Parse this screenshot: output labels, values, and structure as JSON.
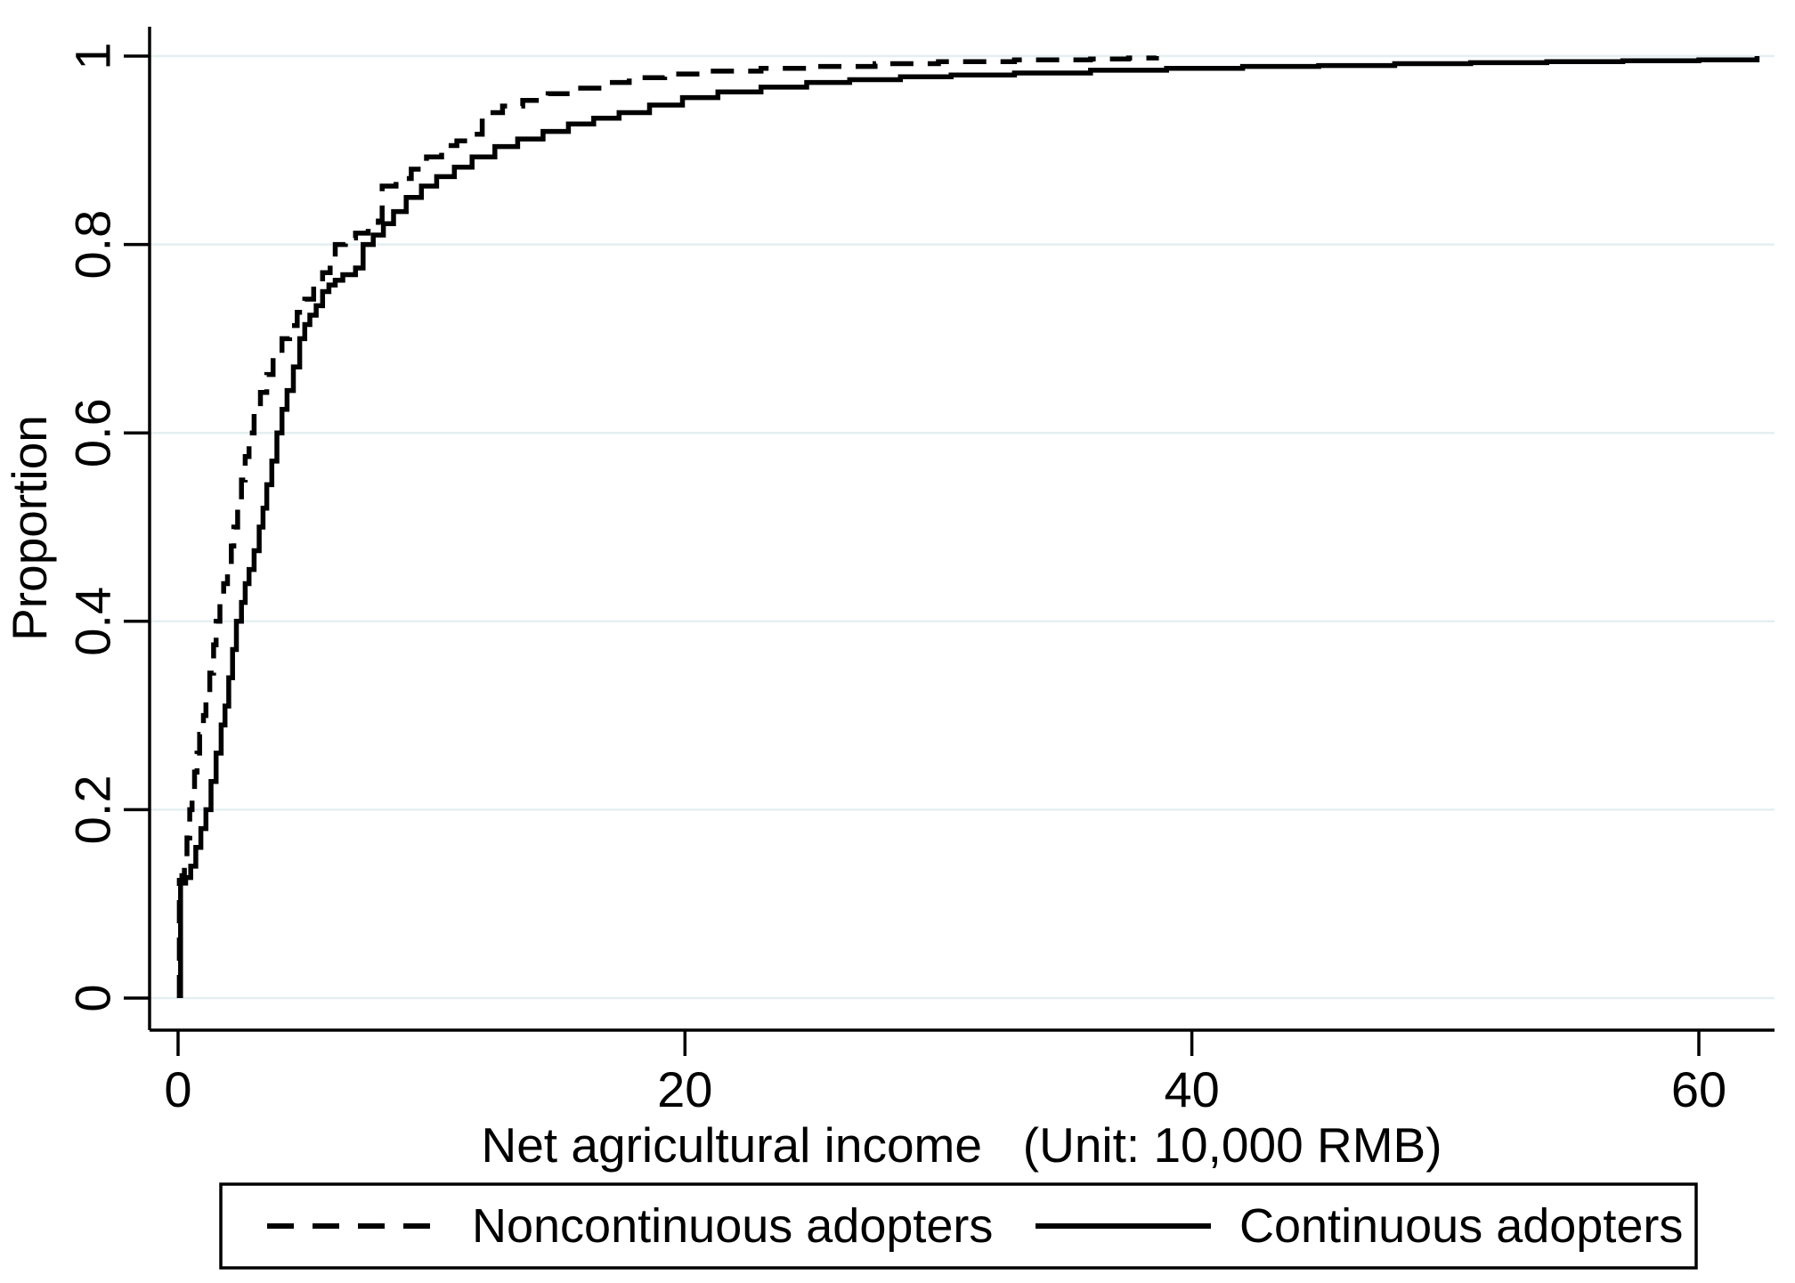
{
  "figure": {
    "background": "#ffffff",
    "text_color": "#000000"
  },
  "chart_data": {
    "type": "line",
    "subtype": "empirical-cdf-step",
    "title": "",
    "xlabel": "Net agricultural income   (Unit: 10,000 RMB)",
    "ylabel": "Proportion",
    "xlim": [
      -1.15,
      63.4
    ],
    "ylim": [
      0,
      1.04
    ],
    "x_ticks": [
      0,
      20,
      40,
      60
    ],
    "x_tick_labels": [
      "0",
      "20",
      "40",
      "60"
    ],
    "y_ticks": [
      0,
      0.2,
      0.4,
      0.6,
      0.8,
      1
    ],
    "y_tick_labels": [
      "0",
      "0.2",
      "0.4",
      "0.6",
      "0.8",
      "1"
    ],
    "grid": "horizontal",
    "gridline_color": "#e4eff1",
    "axis_color": "#000000",
    "legend_position": "bottom",
    "legend_border_color": "#000000",
    "series": [
      {
        "name": "Noncontinuous adopters",
        "line_style": "dashed",
        "color": "#000000",
        "points": [
          [
            0.05,
            0
          ],
          [
            0.05,
            0.125
          ],
          [
            0.15,
            0.13
          ],
          [
            0.25,
            0.15
          ],
          [
            0.35,
            0.17
          ],
          [
            0.46,
            0.2
          ],
          [
            0.55,
            0.22
          ],
          [
            0.65,
            0.24
          ],
          [
            0.75,
            0.26
          ],
          [
            0.85,
            0.28
          ],
          [
            1.0,
            0.3
          ],
          [
            1.1,
            0.32
          ],
          [
            1.25,
            0.345
          ],
          [
            1.4,
            0.375
          ],
          [
            1.5,
            0.4
          ],
          [
            1.65,
            0.42
          ],
          [
            1.8,
            0.44
          ],
          [
            1.95,
            0.46
          ],
          [
            2.1,
            0.48
          ],
          [
            2.2,
            0.5
          ],
          [
            2.35,
            0.525
          ],
          [
            2.5,
            0.55
          ],
          [
            2.65,
            0.575
          ],
          [
            2.8,
            0.6
          ],
          [
            3.0,
            0.622
          ],
          [
            3.25,
            0.643
          ],
          [
            3.5,
            0.662
          ],
          [
            3.75,
            0.68
          ],
          [
            4.1,
            0.7
          ],
          [
            4.4,
            0.714
          ],
          [
            4.7,
            0.728
          ],
          [
            5.0,
            0.742
          ],
          [
            5.35,
            0.756
          ],
          [
            5.7,
            0.77
          ],
          [
            6.0,
            0.785
          ],
          [
            6.2,
            0.8
          ],
          [
            6.6,
            0.807
          ],
          [
            7.0,
            0.812
          ],
          [
            7.5,
            0.818
          ],
          [
            7.9,
            0.825
          ],
          [
            8.05,
            0.862
          ],
          [
            8.6,
            0.87
          ],
          [
            9.2,
            0.88
          ],
          [
            9.8,
            0.893
          ],
          [
            10.4,
            0.905
          ],
          [
            11.0,
            0.91
          ],
          [
            11.6,
            0.917
          ],
          [
            12.0,
            0.94
          ],
          [
            12.8,
            0.947
          ],
          [
            13.6,
            0.953
          ],
          [
            14.6,
            0.96
          ],
          [
            15.6,
            0.966
          ],
          [
            16.7,
            0.972
          ],
          [
            17.8,
            0.977
          ],
          [
            19.2,
            0.981
          ],
          [
            21.0,
            0.984
          ],
          [
            23.0,
            0.987
          ],
          [
            25.0,
            0.989
          ],
          [
            27.5,
            0.992
          ],
          [
            30.0,
            0.994
          ],
          [
            33.0,
            0.996
          ],
          [
            36.0,
            0.997
          ],
          [
            37.5,
            0.998
          ],
          [
            38.6,
            1.0
          ]
        ]
      },
      {
        "name": "Continuous adopters",
        "line_style": "solid",
        "color": "#000000",
        "points": [
          [
            0.1,
            0
          ],
          [
            0.1,
            0.122
          ],
          [
            0.3,
            0.128
          ],
          [
            0.5,
            0.14
          ],
          [
            0.7,
            0.16
          ],
          [
            0.9,
            0.18
          ],
          [
            1.1,
            0.2
          ],
          [
            1.3,
            0.23
          ],
          [
            1.5,
            0.26
          ],
          [
            1.7,
            0.29
          ],
          [
            1.85,
            0.31
          ],
          [
            2.0,
            0.34
          ],
          [
            2.15,
            0.37
          ],
          [
            2.3,
            0.4
          ],
          [
            2.5,
            0.42
          ],
          [
            2.65,
            0.44
          ],
          [
            2.8,
            0.455
          ],
          [
            3.0,
            0.475
          ],
          [
            3.2,
            0.5
          ],
          [
            3.35,
            0.52
          ],
          [
            3.5,
            0.545
          ],
          [
            3.7,
            0.57
          ],
          [
            3.9,
            0.6
          ],
          [
            4.1,
            0.625
          ],
          [
            4.3,
            0.645
          ],
          [
            4.55,
            0.67
          ],
          [
            4.8,
            0.7
          ],
          [
            5.0,
            0.715
          ],
          [
            5.2,
            0.725
          ],
          [
            5.45,
            0.735
          ],
          [
            5.7,
            0.75
          ],
          [
            5.95,
            0.757
          ],
          [
            6.2,
            0.762
          ],
          [
            6.5,
            0.768
          ],
          [
            7.0,
            0.775
          ],
          [
            7.3,
            0.8
          ],
          [
            7.7,
            0.81
          ],
          [
            8.1,
            0.822
          ],
          [
            8.5,
            0.835
          ],
          [
            9.0,
            0.85
          ],
          [
            9.6,
            0.862
          ],
          [
            10.2,
            0.872
          ],
          [
            10.9,
            0.882
          ],
          [
            11.6,
            0.893
          ],
          [
            12.5,
            0.904
          ],
          [
            13.4,
            0.912
          ],
          [
            14.4,
            0.92
          ],
          [
            15.4,
            0.928
          ],
          [
            16.4,
            0.934
          ],
          [
            17.4,
            0.94
          ],
          [
            18.6,
            0.948
          ],
          [
            19.9,
            0.956
          ],
          [
            21.3,
            0.962
          ],
          [
            23.0,
            0.967
          ],
          [
            24.8,
            0.972
          ],
          [
            26.5,
            0.975
          ],
          [
            28.5,
            0.978
          ],
          [
            30.5,
            0.98
          ],
          [
            33.0,
            0.982
          ],
          [
            36.0,
            0.985
          ],
          [
            39.0,
            0.987
          ],
          [
            42.0,
            0.989
          ],
          [
            45.0,
            0.99
          ],
          [
            48.0,
            0.992
          ],
          [
            51.0,
            0.993
          ],
          [
            54.0,
            0.994
          ],
          [
            57.0,
            0.995
          ],
          [
            60.0,
            0.996
          ],
          [
            62.3,
            0.997
          ],
          [
            62.3,
            1.0
          ]
        ]
      }
    ]
  }
}
